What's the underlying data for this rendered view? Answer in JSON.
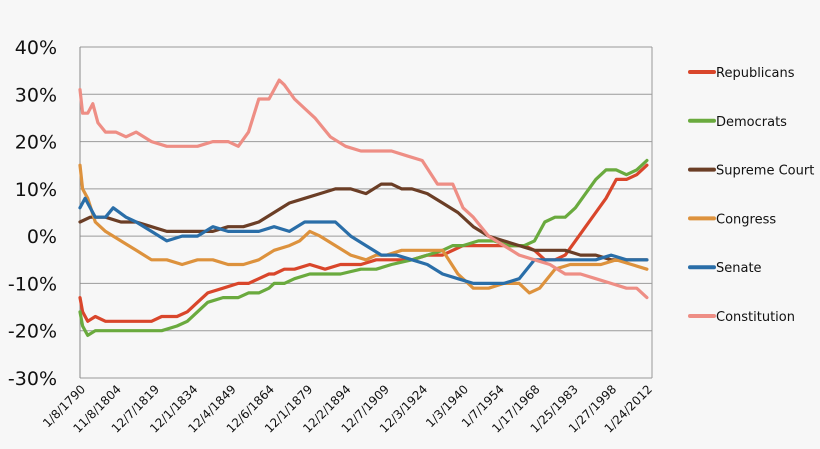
{
  "chart_data": {
    "type": "line",
    "title": "",
    "xlabel": "",
    "ylabel": "",
    "ylim": [
      -30,
      40
    ],
    "yticks": [
      {
        "v": 40,
        "label": "40%"
      },
      {
        "v": 30,
        "label": "30%"
      },
      {
        "v": 20,
        "label": "20%"
      },
      {
        "v": 10,
        "label": "10%"
      },
      {
        "v": 0,
        "label": "0%"
      },
      {
        "v": -10,
        "label": "-10%"
      },
      {
        "v": -20,
        "label": "-20%"
      },
      {
        "v": -30,
        "label": "-30%"
      }
    ],
    "xlim": [
      1790,
      2014
    ],
    "xticks": [
      {
        "v": 1790,
        "label": "1/8/1790"
      },
      {
        "v": 1804,
        "label": "11/8/1804"
      },
      {
        "v": 1819,
        "label": "12/7/1819"
      },
      {
        "v": 1834,
        "label": "12/1/1834"
      },
      {
        "v": 1849,
        "label": "12/4/1849"
      },
      {
        "v": 1864,
        "label": "12/6/1864"
      },
      {
        "v": 1879,
        "label": "12/1/1879"
      },
      {
        "v": 1894,
        "label": "12/2/1894"
      },
      {
        "v": 1909,
        "label": "12/7/1909"
      },
      {
        "v": 1924,
        "label": "12/3/1924"
      },
      {
        "v": 1940,
        "label": "1/3/1940"
      },
      {
        "v": 1954,
        "label": "1/7/1954"
      },
      {
        "v": 1968,
        "label": "1/17/1968"
      },
      {
        "v": 1983,
        "label": "1/25/1983"
      },
      {
        "v": 1998,
        "label": "1/27/1998"
      },
      {
        "v": 2012,
        "label": "1/24/2012"
      }
    ],
    "grid": true,
    "legend_position": "right",
    "series": [
      {
        "name": "Republicans",
        "color": "#d9462b",
        "x": [
          1790,
          1791,
          1793,
          1796,
          1800,
          1806,
          1812,
          1818,
          1822,
          1828,
          1832,
          1836,
          1840,
          1846,
          1852,
          1856,
          1860,
          1864,
          1866,
          1870,
          1874,
          1880,
          1886,
          1892,
          1900,
          1906,
          1912,
          1920,
          1926,
          1932,
          1936,
          1940,
          1946,
          1952,
          1958,
          1964,
          1968,
          1972,
          1976,
          1980,
          1984,
          1988,
          1992,
          1996,
          2000,
          2004,
          2008,
          2012
        ],
        "y": [
          -13,
          -16,
          -18,
          -17,
          -18,
          -18,
          -18,
          -18,
          -17,
          -17,
          -16,
          -14,
          -12,
          -11,
          -10,
          -10,
          -9,
          -8,
          -8,
          -7,
          -7,
          -6,
          -7,
          -6,
          -6,
          -5,
          -5,
          -5,
          -4,
          -4,
          -3,
          -2,
          -2,
          -2,
          -2,
          -2,
          -3,
          -5,
          -5,
          -4,
          -1,
          2,
          5,
          8,
          12,
          12,
          13,
          15
        ]
      },
      {
        "name": "Democrats",
        "color": "#6aaa3e",
        "x": [
          1790,
          1791,
          1793,
          1796,
          1800,
          1806,
          1812,
          1818,
          1822,
          1828,
          1832,
          1836,
          1840,
          1846,
          1852,
          1856,
          1860,
          1864,
          1866,
          1870,
          1874,
          1880,
          1886,
          1892,
          1900,
          1906,
          1912,
          1920,
          1926,
          1932,
          1936,
          1940,
          1946,
          1952,
          1958,
          1964,
          1968,
          1972,
          1976,
          1980,
          1984,
          1988,
          1992,
          1996,
          2000,
          2004,
          2008,
          2012
        ],
        "y": [
          -16,
          -19,
          -21,
          -20,
          -20,
          -20,
          -20,
          -20,
          -20,
          -19,
          -18,
          -16,
          -14,
          -13,
          -13,
          -12,
          -12,
          -11,
          -10,
          -10,
          -9,
          -8,
          -8,
          -8,
          -7,
          -7,
          -6,
          -5,
          -4,
          -3,
          -2,
          -2,
          -1,
          -1,
          -2,
          -2,
          -1,
          3,
          4,
          4,
          6,
          9,
          12,
          14,
          14,
          13,
          14,
          16
        ]
      },
      {
        "name": "Supreme Court",
        "color": "#6b3e26",
        "x": [
          1790,
          1794,
          1800,
          1806,
          1812,
          1818,
          1824,
          1830,
          1836,
          1842,
          1848,
          1854,
          1860,
          1866,
          1872,
          1878,
          1884,
          1890,
          1896,
          1902,
          1908,
          1912,
          1916,
          1920,
          1926,
          1932,
          1938,
          1944,
          1950,
          1956,
          1962,
          1968,
          1974,
          1980,
          1986,
          1992,
          1998,
          2004,
          2008,
          2012
        ],
        "y": [
          3,
          4,
          4,
          3,
          3,
          2,
          1,
          1,
          1,
          1,
          2,
          2,
          3,
          5,
          7,
          8,
          9,
          10,
          10,
          9,
          11,
          11,
          10,
          10,
          9,
          7,
          5,
          2,
          0,
          -1,
          -2,
          -3,
          -3,
          -3,
          -4,
          -4,
          -5,
          -5,
          -5,
          -5
        ]
      },
      {
        "name": "Congress",
        "color": "#dd923d",
        "x": [
          1790,
          1791,
          1793,
          1796,
          1800,
          1806,
          1812,
          1818,
          1824,
          1830,
          1836,
          1842,
          1848,
          1854,
          1860,
          1866,
          1872,
          1876,
          1880,
          1884,
          1890,
          1896,
          1902,
          1906,
          1910,
          1916,
          1920,
          1926,
          1932,
          1938,
          1944,
          1950,
          1956,
          1962,
          1966,
          1970,
          1976,
          1982,
          1988,
          1994,
          2000,
          2006,
          2012
        ],
        "y": [
          15,
          10,
          8,
          3,
          1,
          -1,
          -3,
          -5,
          -5,
          -6,
          -5,
          -5,
          -6,
          -6,
          -5,
          -3,
          -2,
          -1,
          1,
          0,
          -2,
          -4,
          -5,
          -4,
          -4,
          -3,
          -3,
          -3,
          -3,
          -8,
          -11,
          -11,
          -10,
          -10,
          -12,
          -11,
          -7,
          -6,
          -6,
          -6,
          -5,
          -6,
          -7
        ]
      },
      {
        "name": "Senate",
        "color": "#2a6ea8",
        "x": [
          1790,
          1792,
          1794,
          1796,
          1800,
          1803,
          1808,
          1812,
          1818,
          1824,
          1830,
          1836,
          1842,
          1848,
          1854,
          1860,
          1866,
          1872,
          1878,
          1884,
          1890,
          1896,
          1902,
          1908,
          1914,
          1920,
          1926,
          1932,
          1938,
          1944,
          1950,
          1956,
          1962,
          1968,
          1974,
          1980,
          1986,
          1992,
          1998,
          2004,
          2008,
          2012
        ],
        "y": [
          6,
          8,
          6,
          4,
          4,
          6,
          4,
          3,
          1,
          -1,
          0,
          0,
          2,
          1,
          1,
          1,
          2,
          1,
          3,
          3,
          3,
          0,
          -2,
          -4,
          -4,
          -5,
          -6,
          -8,
          -9,
          -10,
          -10,
          -10,
          -9,
          -5,
          -5,
          -5,
          -5,
          -5,
          -4,
          -5,
          -5,
          -5
        ]
      },
      {
        "name": "Constitution",
        "color": "#ee8e85",
        "x": [
          1790,
          1791,
          1793,
          1795,
          1797,
          1800,
          1804,
          1808,
          1812,
          1818,
          1824,
          1830,
          1836,
          1842,
          1848,
          1852,
          1856,
          1860,
          1864,
          1866,
          1868,
          1870,
          1874,
          1878,
          1882,
          1888,
          1894,
          1900,
          1906,
          1912,
          1918,
          1924,
          1930,
          1936,
          1940,
          1944,
          1950,
          1956,
          1962,
          1968,
          1974,
          1980,
          1986,
          1992,
          1998,
          2004,
          2008,
          2012
        ],
        "y": [
          31,
          26,
          26,
          28,
          24,
          22,
          22,
          21,
          22,
          20,
          19,
          19,
          19,
          20,
          20,
          19,
          22,
          29,
          29,
          31,
          33,
          32,
          29,
          27,
          25,
          21,
          19,
          18,
          18,
          18,
          17,
          16,
          11,
          11,
          6,
          4,
          0,
          -2,
          -4,
          -5,
          -6,
          -8,
          -8,
          -9,
          -10,
          -11,
          -11,
          -13
        ]
      }
    ]
  }
}
